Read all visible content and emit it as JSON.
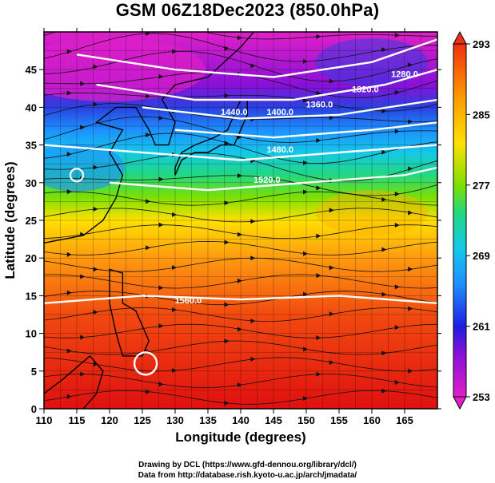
{
  "chart_data": {
    "type": "heatmap",
    "title": "GSM 06Z18Dec2023 (850.0hPa)",
    "xlabel": "Longitude (degrees)",
    "ylabel": "Latitude  (degrees)",
    "xlim": [
      110,
      170
    ],
    "ylim": [
      0,
      50
    ],
    "x_ticks": [
      "110",
      "115",
      "120",
      "125",
      "130",
      "135",
      "140",
      "145",
      "150",
      "155",
      "160",
      "165"
    ],
    "y_ticks": [
      "0",
      "5",
      "10",
      "15",
      "20",
      "25",
      "30",
      "35",
      "40",
      "45"
    ],
    "colorbar": {
      "variable": "temperature",
      "min": 253,
      "max": 293,
      "ticks": [
        "253",
        "261",
        "269",
        "277",
        "285",
        "293"
      ]
    },
    "contour_labels": [
      {
        "text": "1280.0",
        "lon": 165,
        "lat": 44
      },
      {
        "text": "1320.0",
        "lon": 159,
        "lat": 42
      },
      {
        "text": "1360.0",
        "lon": 152,
        "lat": 40
      },
      {
        "text": "1400.0",
        "lon": 146,
        "lat": 39
      },
      {
        "text": "1440.0",
        "lon": 139,
        "lat": 39
      },
      {
        "text": "1480.0",
        "lon": 146,
        "lat": 34
      },
      {
        "text": "1520.0",
        "lon": 144,
        "lat": 30
      },
      {
        "text": "1560.0",
        "lon": 132,
        "lat": 14
      }
    ],
    "grid": true,
    "overlays": [
      "temperature color shading",
      "geopotential height contours (white)",
      "wind streamlines (black)",
      "coastlines"
    ]
  },
  "credits": {
    "line1": "Drawing by DCL (https://www.gfd-dennou.org/library/dcl/)",
    "line2": "Data from http://database.rish.kyoto-u.ac.jp/arch/jmadata/"
  },
  "colors": {
    "scale": [
      "#d81bd0",
      "#b000e0",
      "#1e1ee0",
      "#1e90ff",
      "#14c8e8",
      "#22d880",
      "#7ee000",
      "#ffe000",
      "#ffa000",
      "#ff5a10",
      "#f22a10"
    ]
  }
}
